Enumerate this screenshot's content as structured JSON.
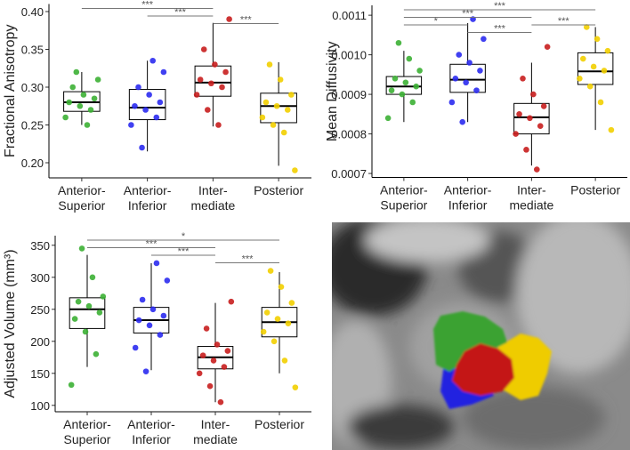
{
  "chart_data": [
    {
      "type": "box",
      "ylabel": "Fractional Anisotropy",
      "categories": [
        "Anterior-\nSuperior",
        "Anterior-\nInferior",
        "Inter-\nmediate",
        "Posterior"
      ],
      "colors": [
        "#3cb034",
        "#2b2bef",
        "#c81e1e",
        "#f2cf00"
      ],
      "ylim": [
        0.18,
        0.41
      ],
      "yticks": [
        {
          "value": 0.2,
          "label": "0.20"
        },
        0.25,
        {
          "value": 0.3,
          "label": "0.30"
        },
        0.35,
        {
          "value": 0.4,
          "label": "0.40"
        }
      ],
      "boxes": [
        {
          "min": 0.25,
          "q1": 0.268,
          "median": 0.28,
          "q3": 0.294,
          "max": 0.32,
          "points": [
            0.26,
            0.27,
            0.275,
            0.28,
            0.285,
            0.29,
            0.3,
            0.31,
            0.25,
            0.32
          ]
        },
        {
          "min": 0.215,
          "q1": 0.257,
          "median": 0.273,
          "q3": 0.297,
          "max": 0.335,
          "points": [
            0.22,
            0.25,
            0.26,
            0.27,
            0.275,
            0.28,
            0.29,
            0.3,
            0.32,
            0.335
          ]
        },
        {
          "min": 0.248,
          "q1": 0.288,
          "median": 0.306,
          "q3": 0.328,
          "max": 0.385,
          "points": [
            0.25,
            0.27,
            0.29,
            0.3,
            0.305,
            0.31,
            0.32,
            0.33,
            0.35,
            0.39
          ]
        },
        {
          "min": 0.196,
          "q1": 0.253,
          "median": 0.275,
          "q3": 0.292,
          "max": 0.333,
          "points": [
            0.19,
            0.24,
            0.25,
            0.26,
            0.27,
            0.275,
            0.28,
            0.29,
            0.31,
            0.33
          ]
        }
      ],
      "annotations": [
        {
          "text": "***",
          "between": [
            0,
            2
          ]
        },
        {
          "text": "***",
          "between": [
            1,
            2
          ]
        },
        {
          "text": "***",
          "between": [
            2,
            3
          ]
        }
      ]
    },
    {
      "type": "box",
      "ylabel": "Mean Diffusivity",
      "categories": [
        "Anterior-\nSuperior",
        "Anterior-\nInferior",
        "Inter-\nmediate",
        "Posterior"
      ],
      "colors": [
        "#3cb034",
        "#2b2bef",
        "#c81e1e",
        "#f2cf00"
      ],
      "ylim": [
        0.00069,
        0.001125
      ],
      "yticks": [
        0.0007,
        0.0008,
        0.0009,
        {
          "value": 0.001,
          "label": "0.0010"
        },
        0.0011
      ],
      "boxes": [
        {
          "min": 0.00083,
          "q1": 0.0009,
          "median": 0.00092,
          "q3": 0.000945,
          "max": 0.00101,
          "points": [
            0.00084,
            0.00088,
            0.0009,
            0.00091,
            0.00092,
            0.00093,
            0.00094,
            0.00096,
            0.00099,
            0.00103
          ]
        },
        {
          "min": 0.00083,
          "q1": 0.000905,
          "median": 0.000937,
          "q3": 0.000976,
          "max": 0.00108,
          "points": [
            0.00083,
            0.00088,
            0.00091,
            0.00093,
            0.00094,
            0.00096,
            0.00098,
            0.001,
            0.00104,
            0.00109
          ]
        },
        {
          "min": 0.00072,
          "q1": 0.0008,
          "median": 0.000842,
          "q3": 0.000877,
          "max": 0.00098,
          "points": [
            0.00071,
            0.00076,
            0.0008,
            0.00082,
            0.00084,
            0.00085,
            0.00087,
            0.0009,
            0.00094,
            0.00102
          ]
        },
        {
          "min": 0.00081,
          "q1": 0.000925,
          "median": 0.000958,
          "q3": 0.001005,
          "max": 0.00107,
          "points": [
            0.00081,
            0.00088,
            0.00092,
            0.00094,
            0.00096,
            0.00097,
            0.00099,
            0.00101,
            0.00104,
            0.00107
          ]
        }
      ],
      "annotations": [
        {
          "text": "***",
          "between": [
            0,
            3
          ]
        },
        {
          "text": "***",
          "between": [
            0,
            2
          ]
        },
        {
          "text": "*",
          "between": [
            0,
            1
          ]
        },
        {
          "text": "***",
          "between": [
            2,
            3
          ]
        },
        {
          "text": "***",
          "between": [
            1,
            2
          ]
        }
      ]
    },
    {
      "type": "box",
      "ylabel": "Adjusted Volume (mm³)",
      "categories": [
        "Anterior-\nSuperior",
        "Anterior-\nInferior",
        "Inter-\nmediate",
        "Posterior"
      ],
      "colors": [
        "#3cb034",
        "#2b2bef",
        "#c81e1e",
        "#f2cf00"
      ],
      "ylim": [
        90,
        365
      ],
      "yticks": [
        100,
        150,
        200,
        250,
        300,
        350
      ],
      "boxes": [
        {
          "min": 160,
          "q1": 220,
          "median": 250,
          "q3": 268,
          "max": 335,
          "points": [
            132,
            180,
            215,
            235,
            245,
            255,
            262,
            270,
            300,
            345
          ]
        },
        {
          "min": 155,
          "q1": 213,
          "median": 233,
          "q3": 253,
          "max": 322,
          "points": [
            153,
            190,
            210,
            225,
            233,
            240,
            250,
            265,
            295,
            322
          ]
        },
        {
          "min": 105,
          "q1": 157,
          "median": 175,
          "q3": 192,
          "max": 260,
          "points": [
            105,
            130,
            150,
            160,
            170,
            178,
            185,
            195,
            220,
            262
          ]
        },
        {
          "min": 150,
          "q1": 207,
          "median": 230,
          "q3": 253,
          "max": 308,
          "points": [
            128,
            170,
            200,
            215,
            228,
            235,
            245,
            260,
            285,
            310
          ]
        }
      ],
      "annotations": [
        {
          "text": "*",
          "between": [
            0,
            3
          ]
        },
        {
          "text": "***",
          "between": [
            0,
            2
          ]
        },
        {
          "text": "***",
          "between": [
            1,
            2
          ]
        },
        {
          "text": "***",
          "between": [
            2,
            3
          ]
        }
      ]
    }
  ]
}
